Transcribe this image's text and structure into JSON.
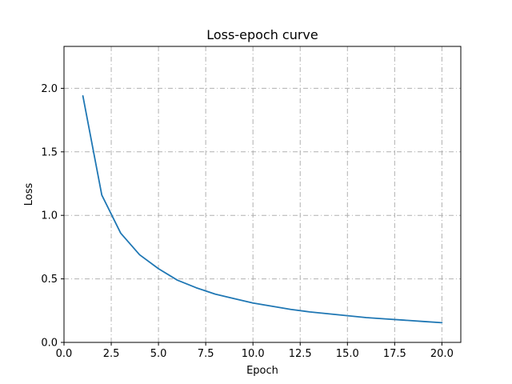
{
  "chart_data": {
    "type": "line",
    "title": "Loss-epoch curve",
    "xlabel": "Epoch",
    "ylabel": "Loss",
    "xlim": [
      0.0,
      21.0
    ],
    "ylim": [
      0.0,
      2.33
    ],
    "xticks": [
      0.0,
      2.5,
      5.0,
      7.5,
      10.0,
      12.5,
      15.0,
      17.5,
      20.0
    ],
    "xtick_labels": [
      "0.0",
      "2.5",
      "5.0",
      "7.5",
      "10.0",
      "12.5",
      "15.0",
      "17.5",
      "20.0"
    ],
    "yticks": [
      0.0,
      0.5,
      1.0,
      1.5,
      2.0
    ],
    "ytick_labels": [
      "0.0",
      "0.5",
      "1.0",
      "1.5",
      "2.0"
    ],
    "grid": true,
    "grid_style": "dash-dot",
    "series": [
      {
        "name": "Loss",
        "color": "#1f77b4",
        "x": [
          1,
          2,
          3,
          4,
          5,
          6,
          7,
          8,
          9,
          10,
          11,
          12,
          13,
          14,
          15,
          16,
          17,
          18,
          19,
          20
        ],
        "values": [
          1.94,
          1.16,
          0.86,
          0.69,
          0.58,
          0.49,
          0.43,
          0.38,
          0.345,
          0.31,
          0.285,
          0.26,
          0.24,
          0.225,
          0.21,
          0.195,
          0.185,
          0.175,
          0.165,
          0.155
        ]
      }
    ]
  }
}
